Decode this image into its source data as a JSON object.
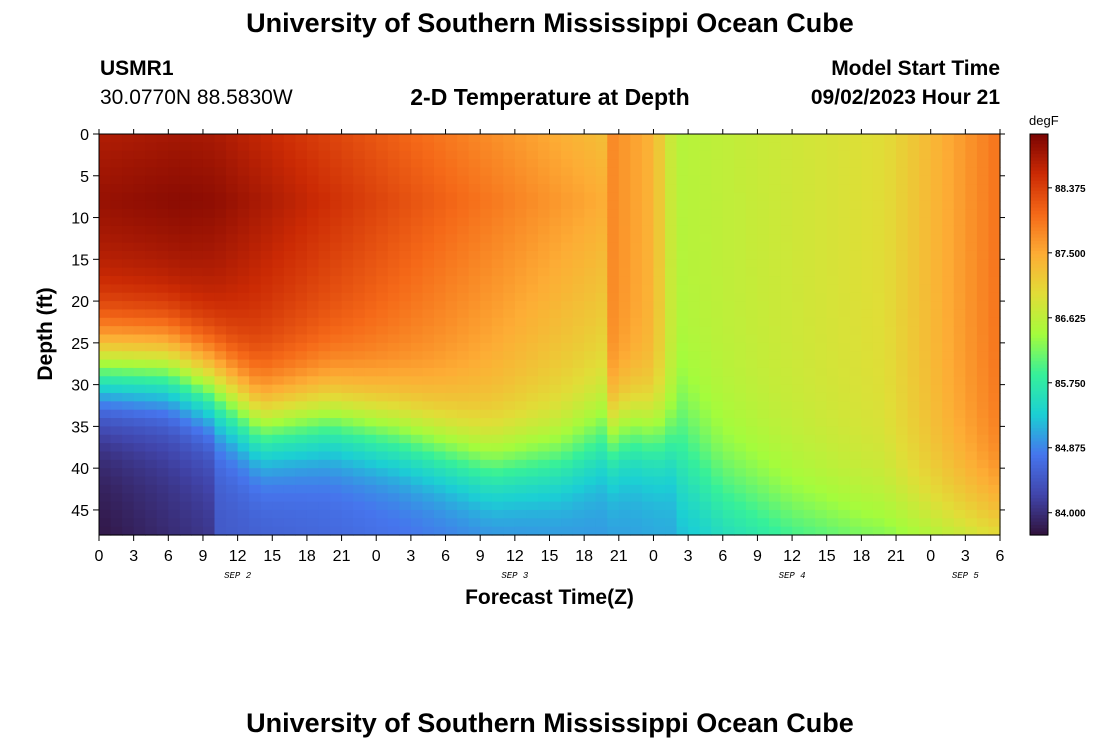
{
  "page": {
    "title_top": "University of Southern Mississippi Ocean Cube",
    "title_bottom": "University of Southern Mississippi Ocean Cube",
    "station": "USMR1",
    "coords": "30.0770N  88.5830W",
    "subtitle": "2-D Temperature at Depth",
    "model_label": "Model Start Time",
    "model_time": "09/02/2023 Hour 21"
  },
  "chart_data": {
    "type": "heatmap",
    "title": "2-D Temperature at Depth",
    "xlabel": "Forecast Time(Z)",
    "ylabel": "Depth (ft)",
    "units": "degF",
    "x_hours_range": [
      0,
      78
    ],
    "ylim": [
      0,
      48
    ],
    "y_reversed": true,
    "x_ticks": [
      "0",
      "3",
      "6",
      "9",
      "12",
      "15",
      "18",
      "21",
      "0",
      "3",
      "6",
      "9",
      "12",
      "15",
      "18",
      "21",
      "0",
      "3",
      "6",
      "9",
      "12",
      "15",
      "18",
      "21",
      "0",
      "3",
      "6"
    ],
    "y_ticks": [
      0,
      5,
      10,
      15,
      20,
      25,
      30,
      35,
      40,
      45
    ],
    "date_labels": [
      {
        "label": "SEP 2",
        "hour": 12
      },
      {
        "label": "SEP 3",
        "hour": 36
      },
      {
        "label": "SEP 4",
        "hour": 60
      },
      {
        "label": "SEP 5",
        "hour": 75
      }
    ],
    "colorbar": {
      "min": 83.7,
      "max": 89.1,
      "ticks": [
        "84.000",
        "84.875",
        "85.750",
        "86.625",
        "87.500",
        "88.375"
      ],
      "colors": [
        "#30123b",
        "#4145ab",
        "#4675ed",
        "#1bcfd4",
        "#36f09a",
        "#a4fc3c",
        "#e1dd37",
        "#fdad35",
        "#f56918",
        "#cb2a04",
        "#7a0403"
      ]
    },
    "thermocline_depth_ft": [
      {
        "hour": 0,
        "depth": 28
      },
      {
        "hour": 6,
        "depth": 28
      },
      {
        "hour": 10,
        "depth": 30.5
      },
      {
        "hour": 14,
        "depth": 35
      },
      {
        "hour": 20,
        "depth": 34
      },
      {
        "hour": 26,
        "depth": 36
      },
      {
        "hour": 34,
        "depth": 40
      },
      {
        "hour": 40,
        "depth": 39
      },
      {
        "hour": 46,
        "depth": 35
      },
      {
        "hour": 50,
        "depth": 37
      },
      {
        "hour": 54,
        "depth": 43
      },
      {
        "hour": 60,
        "depth": 47
      },
      {
        "hour": 66,
        "depth": 49
      },
      {
        "hour": 78,
        "depth": 50
      }
    ]
  },
  "colors": {
    "axis": "#000000"
  }
}
